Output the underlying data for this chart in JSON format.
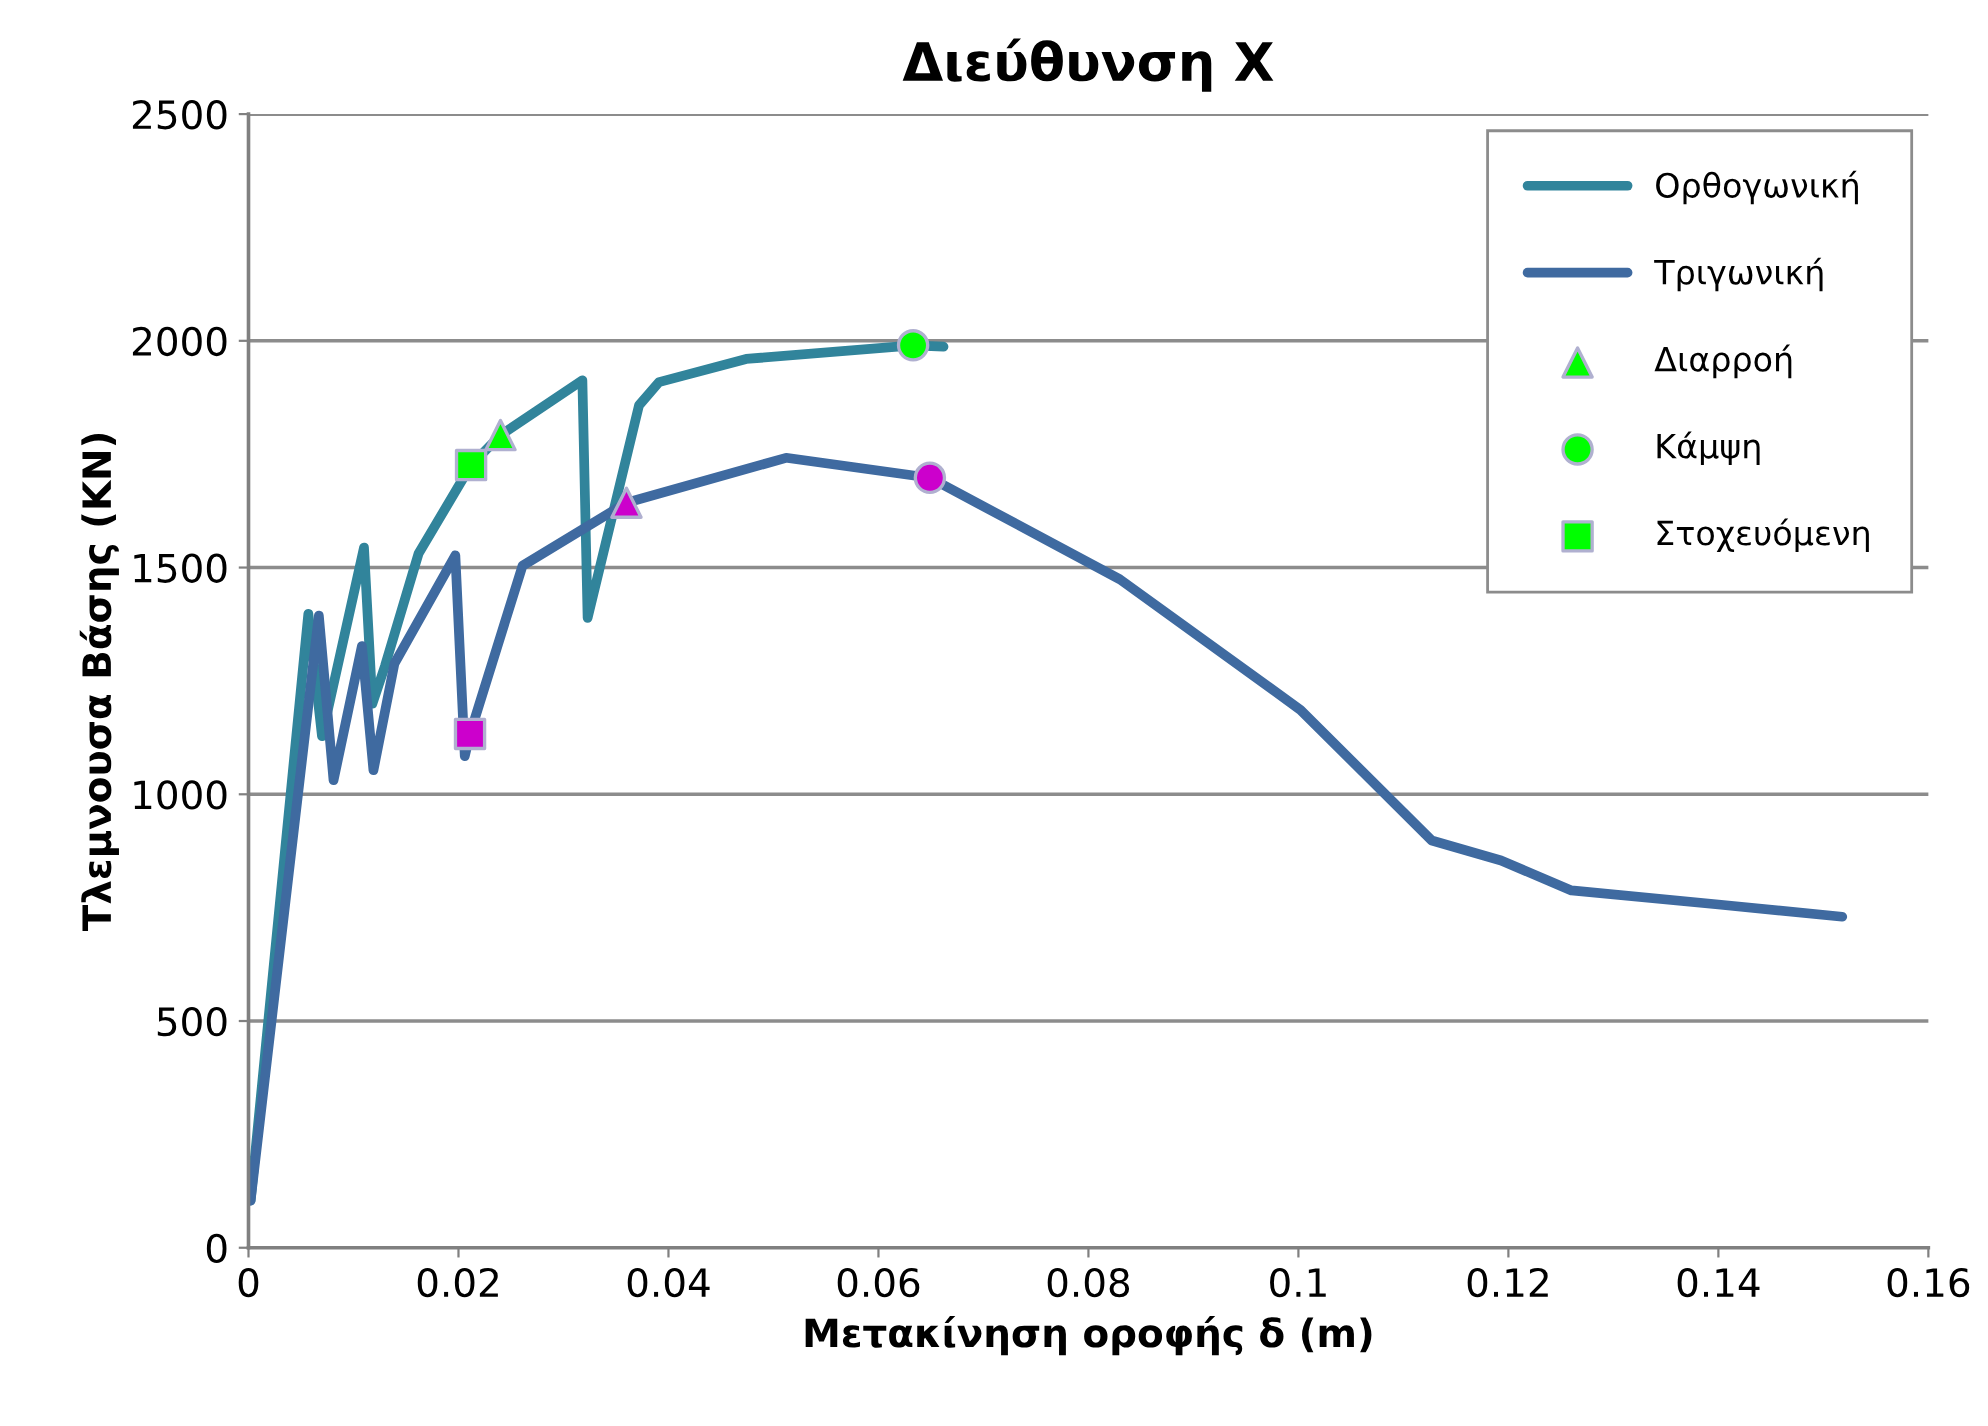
{
  "chart_data": {
    "type": "line",
    "title": "Διεύθυνση X",
    "xlabel": "Μετακίνηση οροφής δ (m)",
    "ylabel": "Τλεμνουσα Βάσης (KN)",
    "xlim": [
      0,
      0.16
    ],
    "xticks": [
      0,
      0.02,
      0.04,
      0.06,
      0.08,
      0.1,
      0.12,
      0.14,
      0.16
    ],
    "ylim": [
      0,
      2500
    ],
    "yticks": [
      0,
      500,
      1000,
      1500,
      2000,
      2500
    ],
    "grid": "y",
    "legend": "top right",
    "series": [
      {
        "name": "Ορθογωνική",
        "color": "#31849b",
        "marker": "none",
        "x": [
          0.0002,
          0.0057,
          0.007,
          0.011,
          0.0118,
          0.013,
          0.0162,
          0.0212,
          0.024,
          0.0318,
          0.0323,
          0.0372,
          0.0391,
          0.0474,
          0.0633,
          0.0662
        ],
        "values": [
          104,
          1398,
          1128,
          1544,
          1200,
          1283,
          1531,
          1726,
          1792,
          1913,
          1389,
          1858,
          1909,
          1960,
          1990,
          1987
        ]
      },
      {
        "name": "Τριγωνική",
        "color": "#3f6aa0",
        "marker": "none",
        "x": [
          0.0002,
          0.0067,
          0.0081,
          0.0108,
          0.0119,
          0.0139,
          0.0197,
          0.0206,
          0.0211,
          0.0261,
          0.036,
          0.0512,
          0.0649,
          0.083,
          0.1002,
          0.1127,
          0.1193,
          0.126,
          0.14,
          0.1518
        ],
        "values": [
          104,
          1394,
          1031,
          1327,
          1053,
          1288,
          1527,
          1084,
          1133,
          1504,
          1643,
          1742,
          1698,
          1474,
          1186,
          898,
          854,
          788,
          757,
          730
        ]
      },
      {
        "name": "Διαρροή",
        "type": "scatter",
        "marker": "triangle",
        "color": "#00ff00",
        "colors": [
          "#00ff00",
          "#cc00cc"
        ],
        "x": [
          0.024,
          0.036
        ],
        "values": [
          1792,
          1643
        ]
      },
      {
        "name": "Κάμψη",
        "type": "scatter",
        "marker": "circle",
        "color": "#00ff00",
        "colors": [
          "#00ff00",
          "#cc00cc"
        ],
        "x": [
          0.0633,
          0.0649
        ],
        "values": [
          1990,
          1698
        ]
      },
      {
        "name": "Στοχευόμενη",
        "type": "scatter",
        "marker": "square",
        "color": "#00ff00",
        "colors": [
          "#00ff00",
          "#cc00cc"
        ],
        "x": [
          0.0212,
          0.0211
        ],
        "values": [
          1726,
          1133
        ]
      }
    ]
  }
}
